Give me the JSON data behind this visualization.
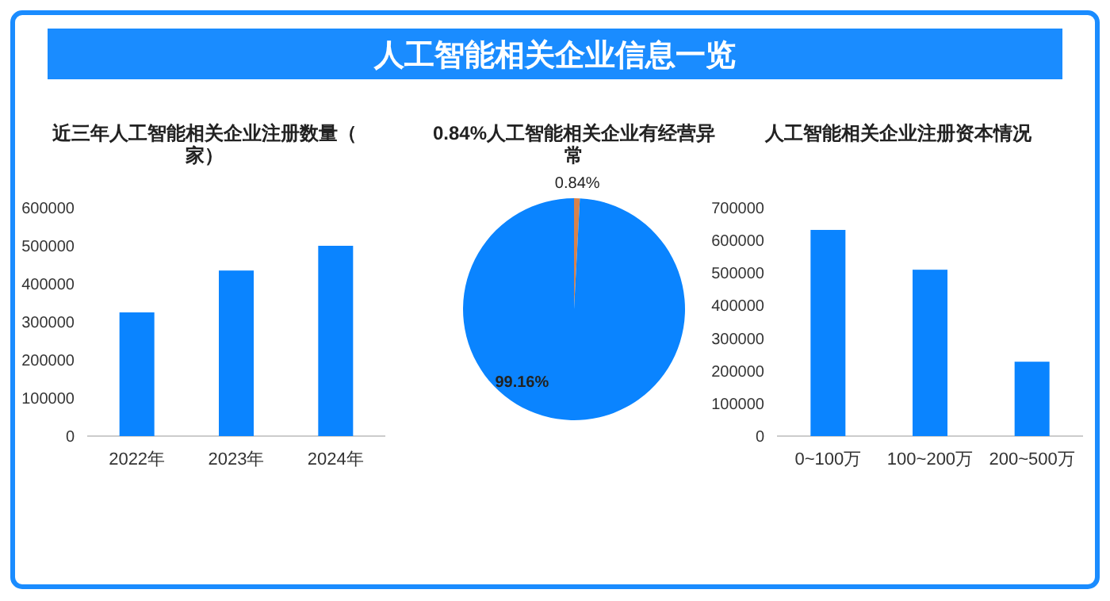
{
  "chart_data": [
    {
      "type": "other",
      "title": "人工智能相关企业信息一览"
    },
    {
      "type": "bar",
      "title": "近三年人工智能相关企业注册数量（家）",
      "categories": [
        "2022年",
        "2023年",
        "2024年"
      ],
      "values": [
        325000,
        435000,
        500000
      ],
      "color": "#0a84ff",
      "ylim": [
        0,
        600000
      ],
      "yticks": [
        0,
        100000,
        200000,
        300000,
        400000,
        500000,
        600000
      ]
    },
    {
      "type": "pie",
      "title": "0.84%人工智能相关企业有经营异常",
      "categories": [
        null,
        null
      ],
      "values": [
        0.84,
        99.16
      ],
      "colors": [
        "#d9824a",
        "#0a84ff"
      ],
      "value_labels": [
        "0.84%",
        "99.16%"
      ]
    },
    {
      "type": "bar",
      "title": "人工智能相关企业注册资本情况",
      "categories": [
        "0~100万",
        "100~200万",
        "200~500万"
      ],
      "values": [
        632000,
        510000,
        228000
      ],
      "color": "#0a84ff",
      "ylim": [
        0,
        700000
      ],
      "yticks": [
        0,
        100000,
        200000,
        300000,
        400000,
        500000,
        600000,
        700000
      ]
    }
  ]
}
